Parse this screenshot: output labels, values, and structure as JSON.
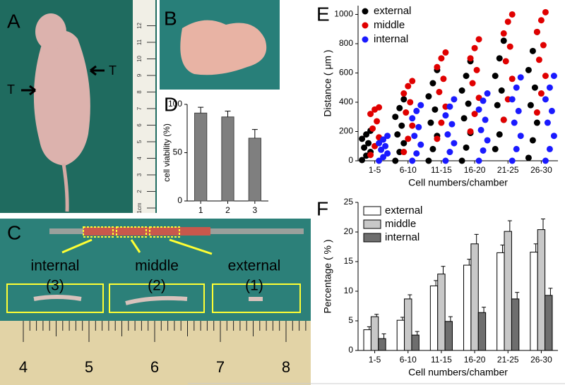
{
  "panels": {
    "letters": [
      "A",
      "B",
      "C",
      "D",
      "E",
      "F"
    ]
  },
  "photo_a": {
    "markers": [
      "T",
      "T"
    ],
    "ruler": [
      "1cm",
      "2",
      "3",
      "4",
      "5",
      "6",
      "7",
      "8",
      "9",
      "10",
      "11",
      "12"
    ]
  },
  "photo_c": {
    "regions": [
      {
        "name": "internal",
        "index": "(3)"
      },
      {
        "name": "middle",
        "index": "(2)"
      },
      {
        "name": "external",
        "index": "(1)"
      }
    ],
    "ruler": [
      "4",
      "5",
      "6",
      "7",
      "8"
    ]
  },
  "chart_data": [
    {
      "type": "bar",
      "y_label": "cell viability (%)",
      "categories": [
        "1",
        "2",
        "3"
      ],
      "values": [
        91,
        87,
        65
      ],
      "errors": [
        6,
        6,
        9
      ],
      "color": "#7f7f7f",
      "ylim": [
        0,
        100
      ],
      "yticks": [
        0,
        50,
        100
      ]
    },
    {
      "type": "strip",
      "x_label": "Cell numbers/chamber",
      "y_label": "Distance ( μm )",
      "categories": [
        "1-5",
        "6-10",
        "11-15",
        "16-20",
        "21-25",
        "26-30"
      ],
      "series": [
        {
          "name": "external",
          "color": "#000000",
          "values": [
            [
              5,
              35,
              60,
              90,
              120,
              150,
              180,
              205
            ],
            [
              0,
              60,
              120,
              180,
              240,
              300,
              360,
              420
            ],
            [
              0,
              80,
              170,
              260,
              350,
              440,
              530,
              620
            ],
            [
              0,
              90,
              190,
              290,
              390,
              480,
              580,
              680
            ],
            [
              80,
              180,
              280,
              380,
              480,
              580,
              700,
              820
            ],
            [
              20,
              140,
              260,
              380,
              500,
              620,
              750,
              880
            ]
          ]
        },
        {
          "name": "middle",
          "color": "#e00000",
          "values": [
            [
              40,
              100,
              160,
              220,
              270,
              320,
              350,
              365
            ],
            [
              60,
              150,
              240,
              330,
              400,
              460,
              510,
              545
            ],
            [
              150,
              260,
              370,
              470,
              560,
              640,
              700,
              740
            ],
            [
              200,
              320,
              430,
              530,
              620,
              700,
              770,
              830
            ],
            [
              280,
              420,
              560,
              680,
              780,
              870,
              950,
              1000
            ],
            [
              330,
              460,
              580,
              690,
              790,
              880,
              960,
              1015
            ]
          ]
        },
        {
          "name": "internal",
          "color": "#1a1aff",
          "values": [
            [
              0,
              25,
              50,
              75,
              100,
              120,
              145,
              170
            ],
            [
              0,
              50,
              110,
              170,
              230,
              290,
              340,
              380
            ],
            [
              0,
              60,
              120,
              180,
              250,
              310,
              370,
              420
            ],
            [
              0,
              70,
              140,
              210,
              280,
              350,
              410,
              460
            ],
            [
              0,
              80,
              170,
              260,
              340,
              420,
              500,
              570
            ],
            [
              0,
              80,
              170,
              260,
              340,
              420,
              500,
              580
            ]
          ]
        }
      ],
      "ylim": [
        0,
        1060
      ],
      "yticks": [
        0,
        200,
        400,
        600,
        800,
        1000
      ],
      "legend": "top-left"
    },
    {
      "type": "grouped_bar",
      "x_label": "Cell numbers/chamber",
      "y_label": "Percentage ( % )",
      "categories": [
        "1-5",
        "6-10",
        "11-15",
        "16-20",
        "21-25",
        "26-30"
      ],
      "series": [
        {
          "name": "external",
          "color": "#ffffff",
          "values": [
            3.5,
            5.1,
            10.9,
            14.4,
            16.5,
            16.6
          ],
          "errors": [
            0.5,
            0.5,
            0.9,
            1.0,
            1.3,
            1.4
          ]
        },
        {
          "name": "middle",
          "color": "#c8c8c8",
          "values": [
            5.7,
            8.7,
            12.9,
            18.0,
            20.1,
            20.4
          ],
          "errors": [
            0.4,
            0.7,
            1.3,
            1.6,
            1.8,
            1.8
          ]
        },
        {
          "name": "internal",
          "color": "#6e6e6e",
          "values": [
            2.0,
            2.6,
            4.9,
            6.4,
            8.7,
            9.3
          ],
          "errors": [
            0.8,
            0.6,
            0.8,
            0.9,
            1.1,
            1.2
          ]
        }
      ],
      "ylim": [
        0,
        25
      ],
      "yticks": [
        0,
        5,
        10,
        15,
        20,
        25
      ],
      "legend": "top-left"
    }
  ]
}
